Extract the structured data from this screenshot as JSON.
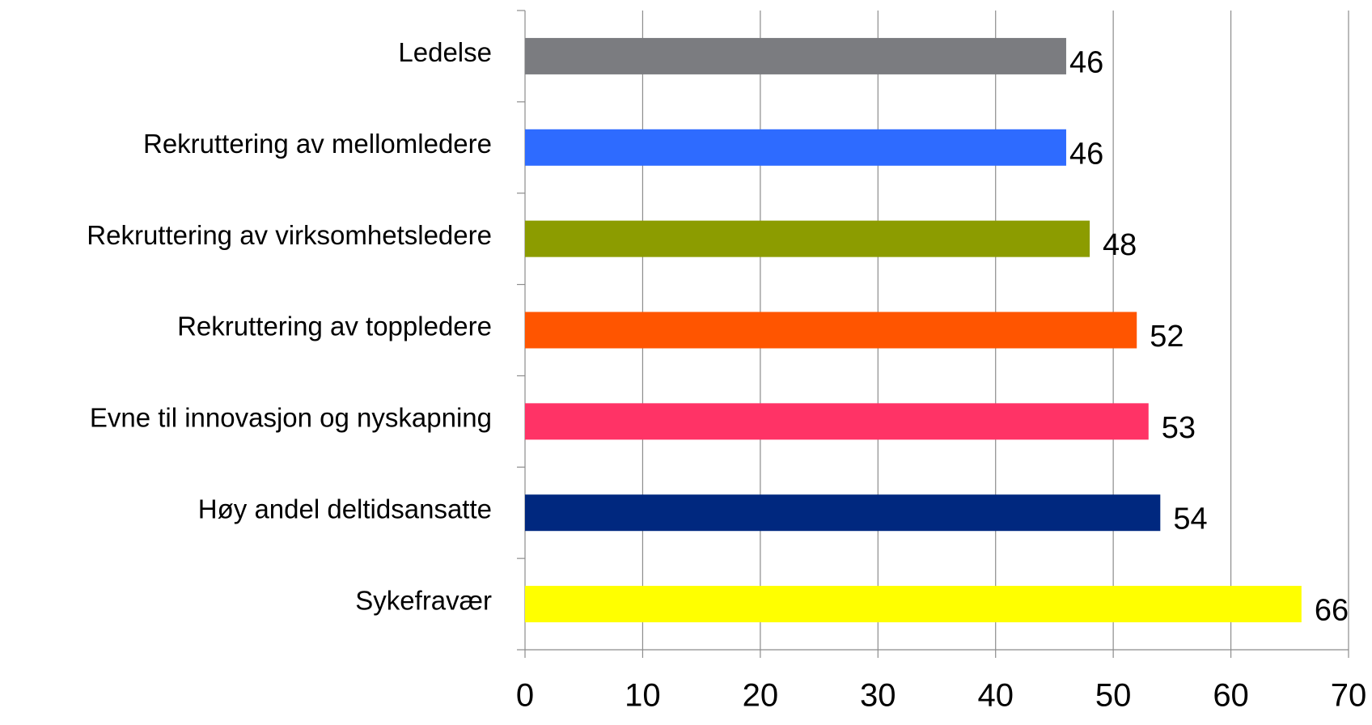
{
  "chart_data": {
    "type": "bar",
    "orientation": "horizontal",
    "categories": [
      "Ledelse",
      "Rekruttering av mellomledere",
      "Rekruttering av virksomhetsledere",
      "Rekruttering av toppledere",
      "Evne til innovasjon og nyskapning",
      "Høy andel deltidsansatte",
      "Sykefravær"
    ],
    "values": [
      46,
      46,
      48,
      52,
      53,
      54,
      66
    ],
    "colors": [
      "#7b7c80",
      "#2e6bff",
      "#8c9c00",
      "#ff5500",
      "#ff3366",
      "#00287f",
      "#ffff00"
    ],
    "xlim": [
      0,
      70
    ],
    "xticks": [
      0,
      10,
      20,
      30,
      40,
      50,
      60,
      70
    ],
    "grid": true
  }
}
